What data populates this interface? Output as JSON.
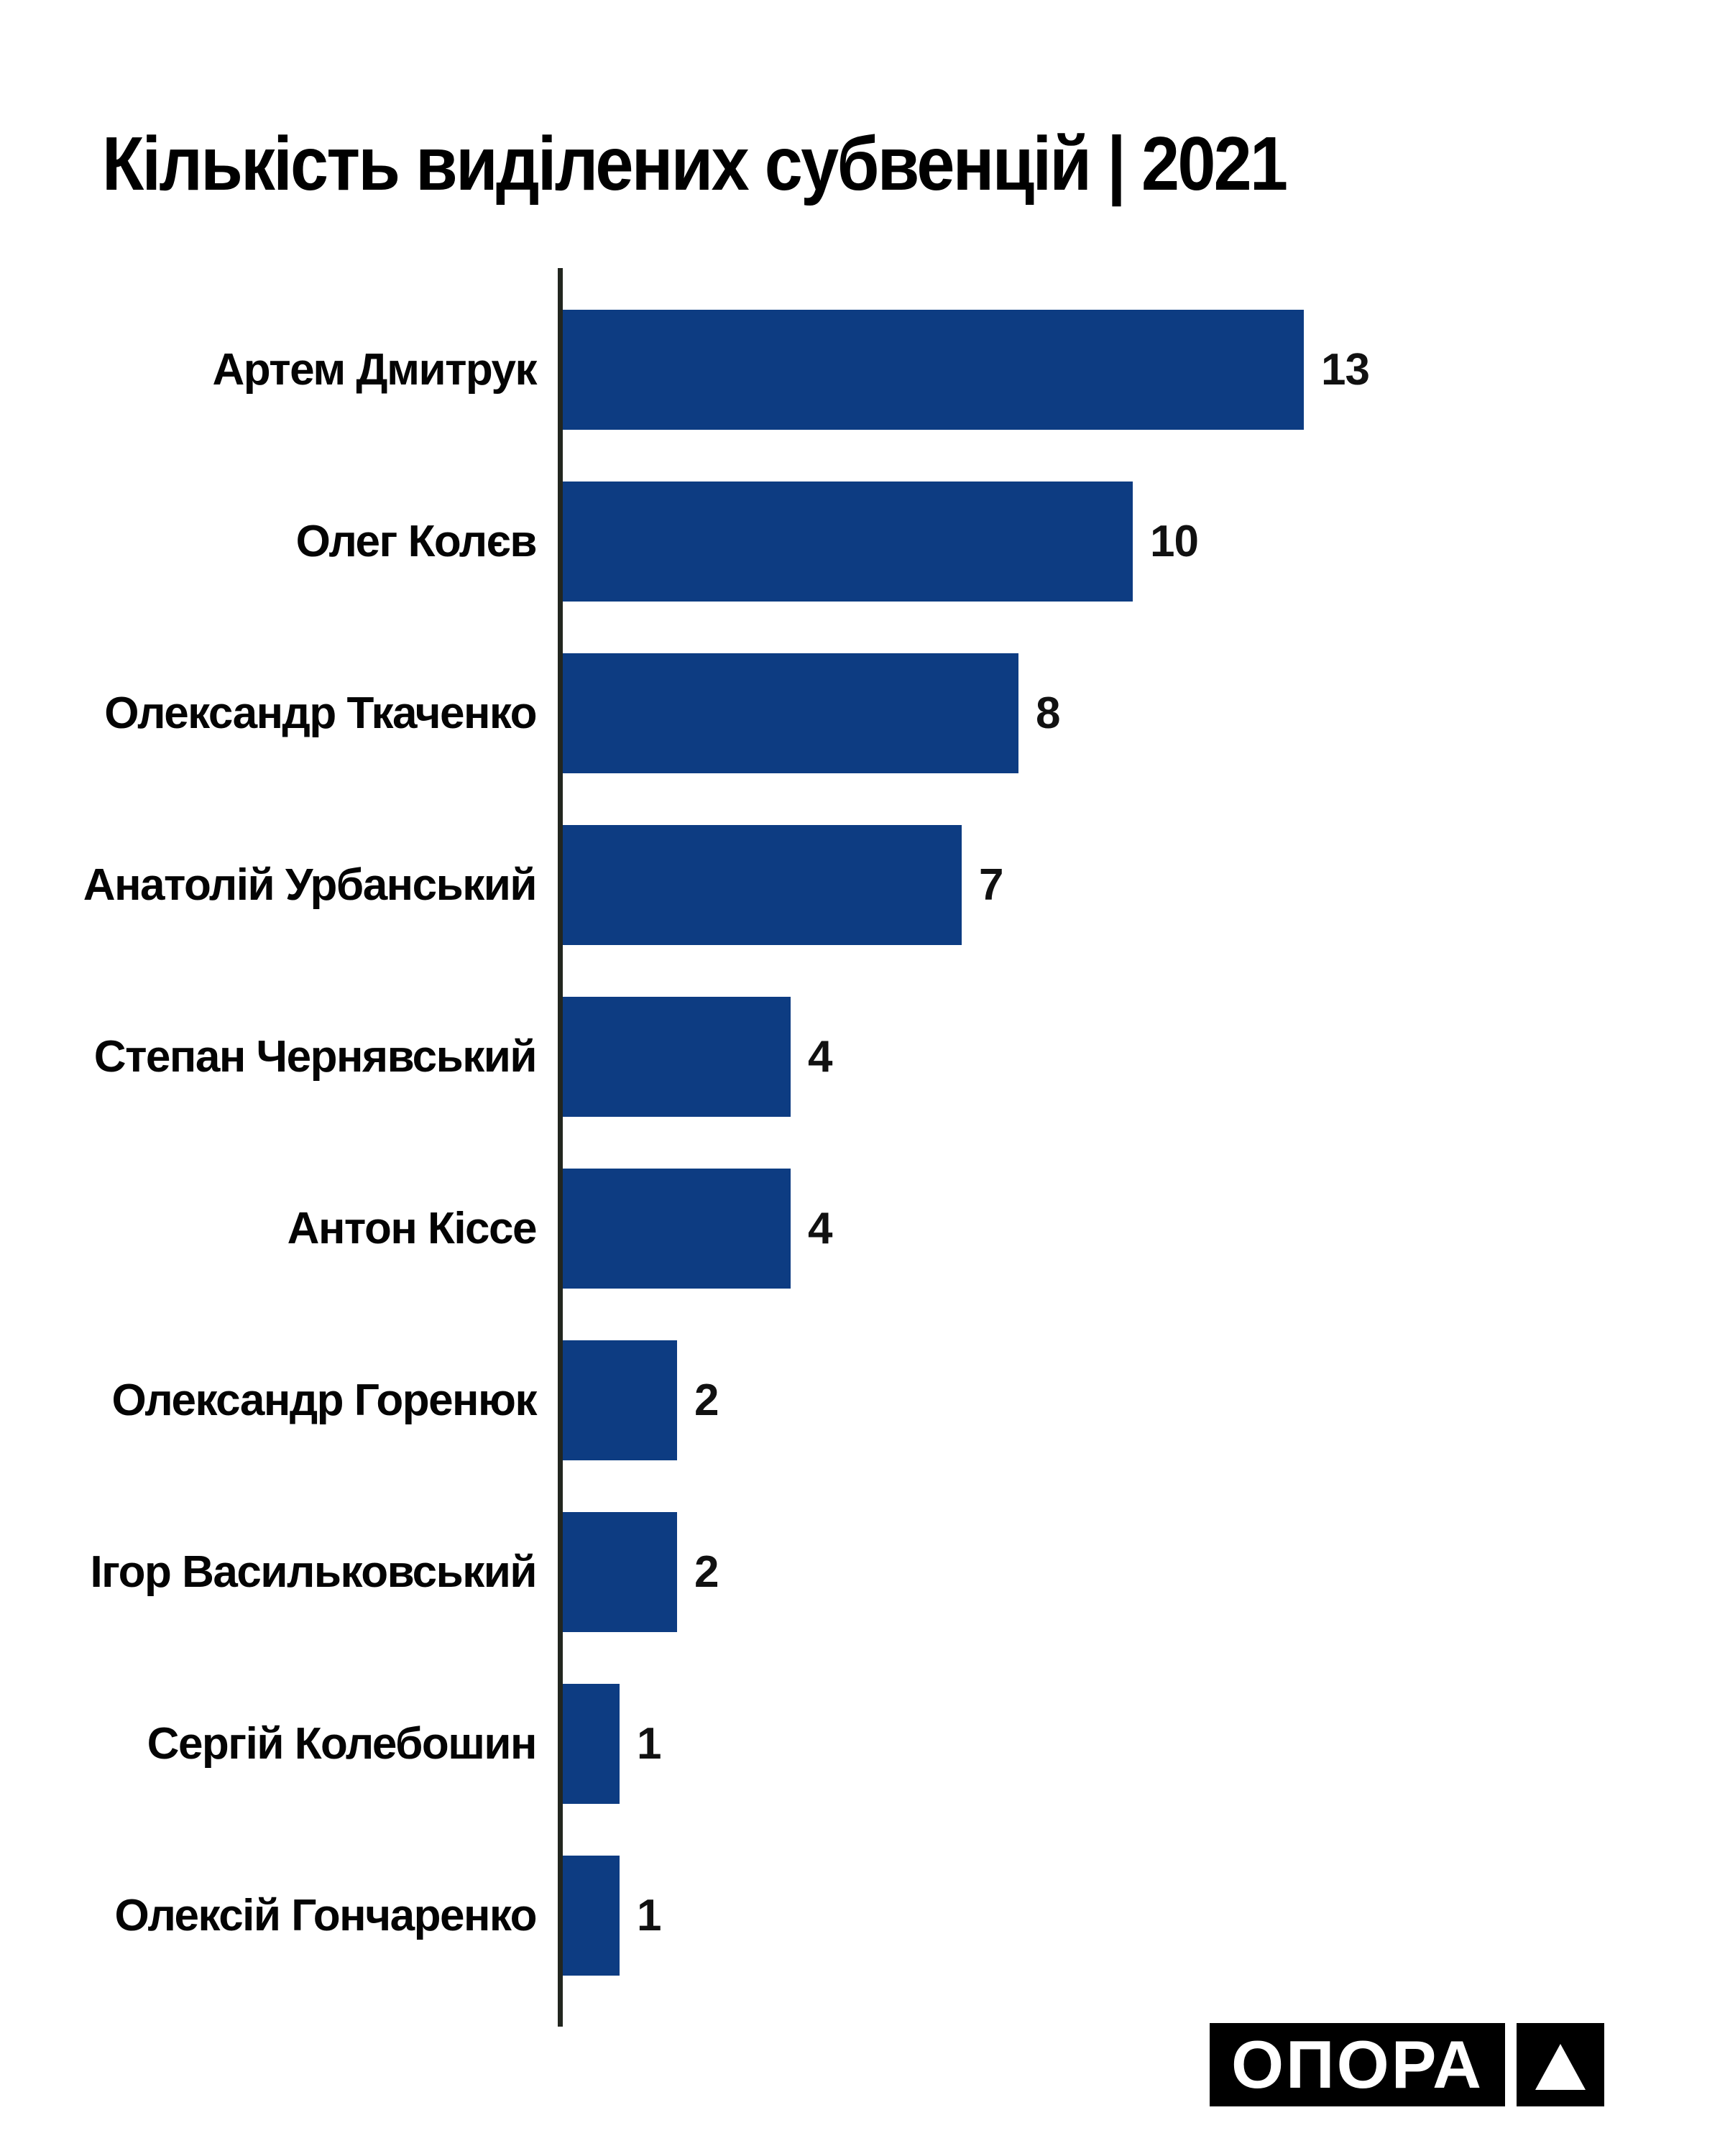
{
  "title": "Кількість виділених субвенцій | 2021",
  "chart_data": {
    "type": "bar",
    "orientation": "horizontal",
    "title": "Кількість виділених субвенцій | 2021",
    "categories": [
      "Артем Дмитрук",
      "Олег Колєв",
      "Олександр Ткаченко",
      "Анатолій Урбанський",
      "Степан Чернявський",
      "Антон Кіссе",
      "Олександр Горенюк",
      "Ігор Васильковський",
      "Сергій Колебошин",
      "Олексій Гончаренко"
    ],
    "values": [
      13,
      10,
      8,
      7,
      4,
      4,
      2,
      2,
      1,
      1
    ],
    "xlabel": "",
    "ylabel": "",
    "xlim": [
      0,
      20
    ],
    "grid": false,
    "legend": false,
    "value_labels_shown": true,
    "bar_color": "#0d3c82",
    "axis_color": "#22261f",
    "label_color": "#040404",
    "background_color": "#ffffff"
  },
  "logo": {
    "wordmark": "ОПОРА",
    "triangle_icon": "triangle-up-icon",
    "bg_color": "#000000",
    "fg_color": "#ffffff"
  }
}
